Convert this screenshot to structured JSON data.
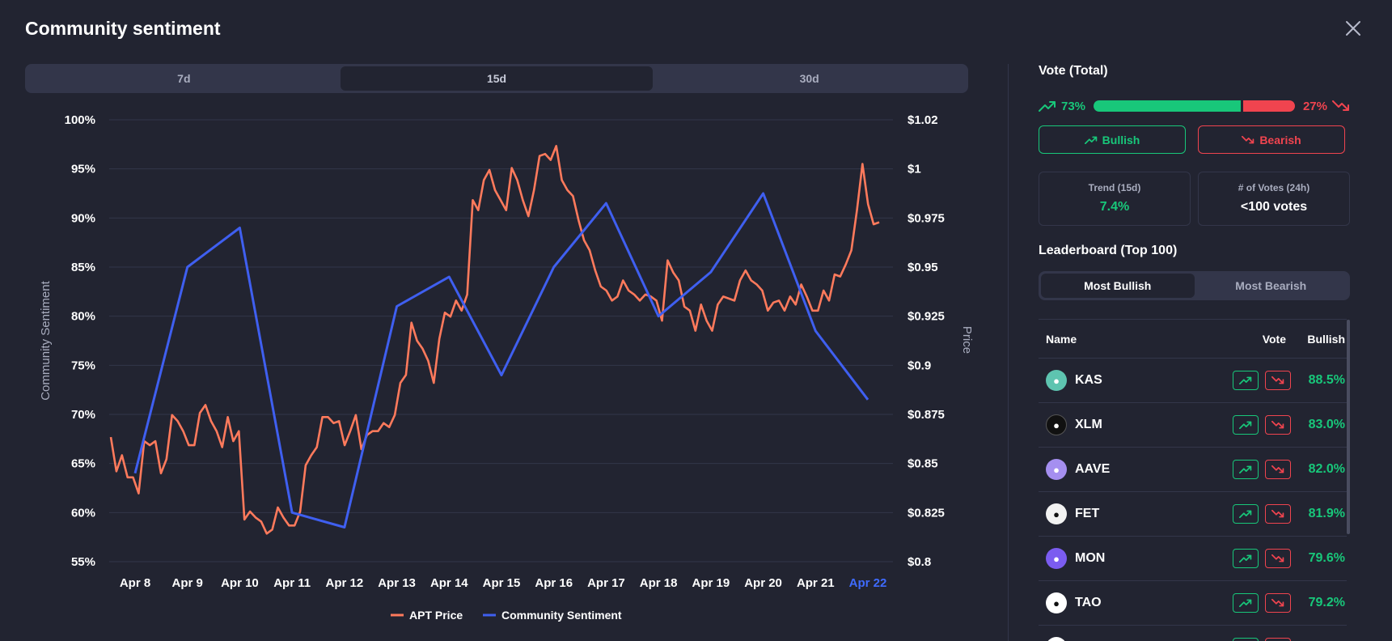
{
  "title": "Community sentiment",
  "ranges": [
    "7d",
    "15d",
    "30d"
  ],
  "active_range": "15d",
  "chart_data": {
    "type": "line",
    "x_labels": [
      "Apr 8",
      "Apr 9",
      "Apr 10",
      "Apr 11",
      "Apr 12",
      "Apr 13",
      "Apr 14",
      "Apr 15",
      "Apr 16",
      "Apr 17",
      "Apr 18",
      "Apr 19",
      "Apr 20",
      "Apr 21",
      "Apr 22"
    ],
    "y_left_label": "Community Sentiment",
    "y_left_ticks": [
      "100%",
      "95%",
      "90%",
      "85%",
      "80%",
      "75%",
      "70%",
      "65%",
      "60%",
      "55%"
    ],
    "y_left_range": [
      55,
      100
    ],
    "y_right_label": "Price",
    "y_right_ticks": [
      "$1.02",
      "$1",
      "$0.975",
      "$0.95",
      "$0.925",
      "$0.9",
      "$0.875",
      "$0.85",
      "$0.825",
      "$0.8"
    ],
    "y_right_range": [
      0.8,
      1.02
    ],
    "series": [
      {
        "name": "APT Price",
        "color": "#ff7a5c",
        "values": [
          0.862,
          0.845,
          0.853,
          0.842,
          0.842,
          0.834,
          0.86,
          0.858,
          0.86,
          0.844,
          0.851,
          0.873,
          0.87,
          0.865,
          0.858,
          0.858,
          0.874,
          0.878,
          0.87,
          0.865,
          0.857,
          0.872,
          0.86,
          0.865,
          0.821,
          0.825,
          0.822,
          0.82,
          0.814,
          0.816,
          0.827,
          0.822,
          0.818,
          0.818,
          0.825,
          0.848,
          0.853,
          0.857,
          0.872,
          0.872,
          0.869,
          0.87,
          0.858,
          0.865,
          0.873,
          0.856,
          0.863,
          0.865,
          0.865,
          0.869,
          0.867,
          0.873,
          0.889,
          0.893,
          0.919,
          0.91,
          0.906,
          0.9,
          0.889,
          0.911,
          0.924,
          0.922,
          0.93,
          0.925,
          0.933,
          0.98,
          0.975,
          0.99,
          0.995,
          0.985,
          0.98,
          0.975,
          0.996,
          0.99,
          0.98,
          0.972,
          0.985,
          1.002,
          1.003,
          1.0,
          1.007,
          0.99,
          0.985,
          0.982,
          0.97,
          0.96,
          0.955,
          0.945,
          0.937,
          0.935,
          0.93,
          0.932,
          0.94,
          0.935,
          0.933,
          0.93,
          0.933,
          0.932,
          0.93,
          0.92,
          0.95,
          0.944,
          0.94,
          0.927,
          0.925,
          0.915,
          0.928,
          0.92,
          0.915,
          0.928,
          0.932,
          0.931,
          0.93,
          0.94,
          0.945,
          0.94,
          0.938,
          0.935,
          0.925,
          0.929,
          0.93,
          0.925,
          0.932,
          0.928,
          0.938,
          0.932,
          0.925,
          0.925,
          0.935,
          0.93,
          0.943,
          0.942,
          0.948,
          0.955,
          0.975,
          0.998,
          0.978,
          0.968,
          0.969
        ]
      },
      {
        "name": "Community Sentiment",
        "color": "#3f5ff0",
        "values": [
          64,
          85,
          89,
          60,
          58.5,
          81,
          84,
          74,
          85,
          91.5,
          80,
          84.5,
          92.5,
          78.5,
          71.5
        ]
      }
    ],
    "legend": "bottom-center",
    "grid": true
  },
  "side": {
    "vote_title": "Vote (Total)",
    "bull_pct": "73%",
    "bear_pct": "27%",
    "bull_fraction": 0.73,
    "bullish_label": "Bullish",
    "bearish_label": "Bearish",
    "trend_label": "Trend (15d)",
    "trend_value": "7.4%",
    "votes_label": "# of Votes (24h)",
    "votes_value": "<100 votes",
    "leaderboard_title": "Leaderboard (Top 100)",
    "lb_tabs": [
      "Most Bullish",
      "Most Bearish"
    ],
    "table_headers": {
      "name": "Name",
      "vote": "Vote",
      "bullish": "Bullish"
    },
    "rows": [
      {
        "name": "KAS",
        "bullish": "88.5%",
        "color": "#5ec4b0",
        "icon": "kas-icon"
      },
      {
        "name": "XLM",
        "bullish": "83.0%",
        "color": "#111111",
        "icon": "xlm-icon"
      },
      {
        "name": "AAVE",
        "bullish": "82.0%",
        "color": "#a58ff0",
        "icon": "aave-icon"
      },
      {
        "name": "FET",
        "bullish": "81.9%",
        "color": "#f2f2f2",
        "icon": "fet-icon"
      },
      {
        "name": "MON",
        "bullish": "79.6%",
        "color": "#7b5cf0",
        "icon": "mon-icon"
      },
      {
        "name": "TAO",
        "bullish": "79.2%",
        "color": "#ffffff",
        "icon": "tao-icon"
      },
      {
        "name": "",
        "bullish": "",
        "color": "#ffffff",
        "icon": "coin-icon"
      }
    ]
  }
}
